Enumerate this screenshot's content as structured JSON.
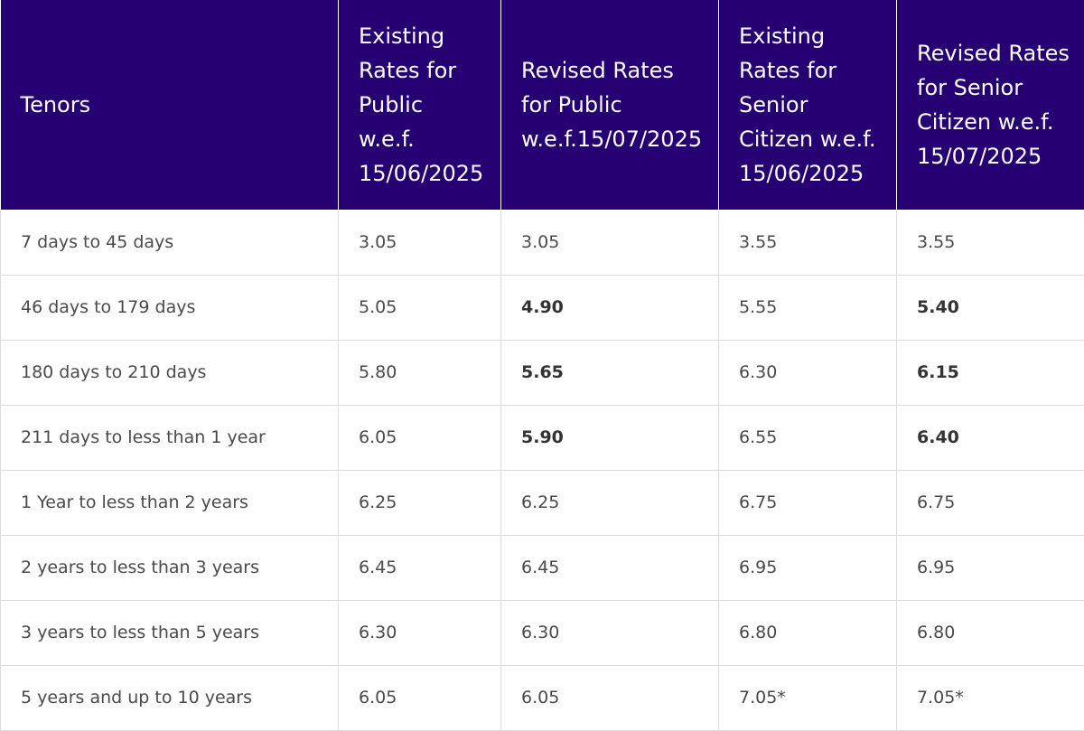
{
  "table": {
    "headers": [
      "Tenors",
      "Existing\nRates for\nPublic\nw.e.f.\n15/06/2025",
      "Revised Rates\nfor Public\nw.e.f.15/07/2025",
      "Existing\nRates for\nSenior\nCitizen w.e.f.\n15/06/2025",
      "Revised Rates\nfor Senior\nCitizen  w.e.f.\n15/07/2025"
    ],
    "rows": [
      [
        "7 days to 45 days",
        "3.05",
        "3.05",
        "3.55",
        "3.55"
      ],
      [
        "46 days to 179 days",
        "5.05",
        "4.90",
        "5.55",
        "5.40"
      ],
      [
        "180 days to 210 days",
        "5.80",
        "5.65",
        "6.30",
        "6.15"
      ],
      [
        "211 days to less than 1 year",
        "6.05",
        "5.90",
        "6.55",
        "6.40"
      ],
      [
        "1 Year to less than 2 years",
        "6.25",
        "6.25",
        "6.75",
        "6.75"
      ],
      [
        "2 years to less than 3 years",
        "6.45",
        "6.45",
        "6.95",
        "6.95"
      ],
      [
        "3 years to less than 5 years",
        "6.30",
        "6.30",
        "6.80",
        "6.80"
      ],
      [
        "5 years and up to 10 years",
        "6.05",
        "6.05",
        " 7.05*",
        " 7.05*"
      ]
    ]
  },
  "colors": {
    "header_bg": "#260072",
    "header_text": "#ffffff",
    "cell_text": "#4a4a4a",
    "border": "#dcdcdc"
  }
}
